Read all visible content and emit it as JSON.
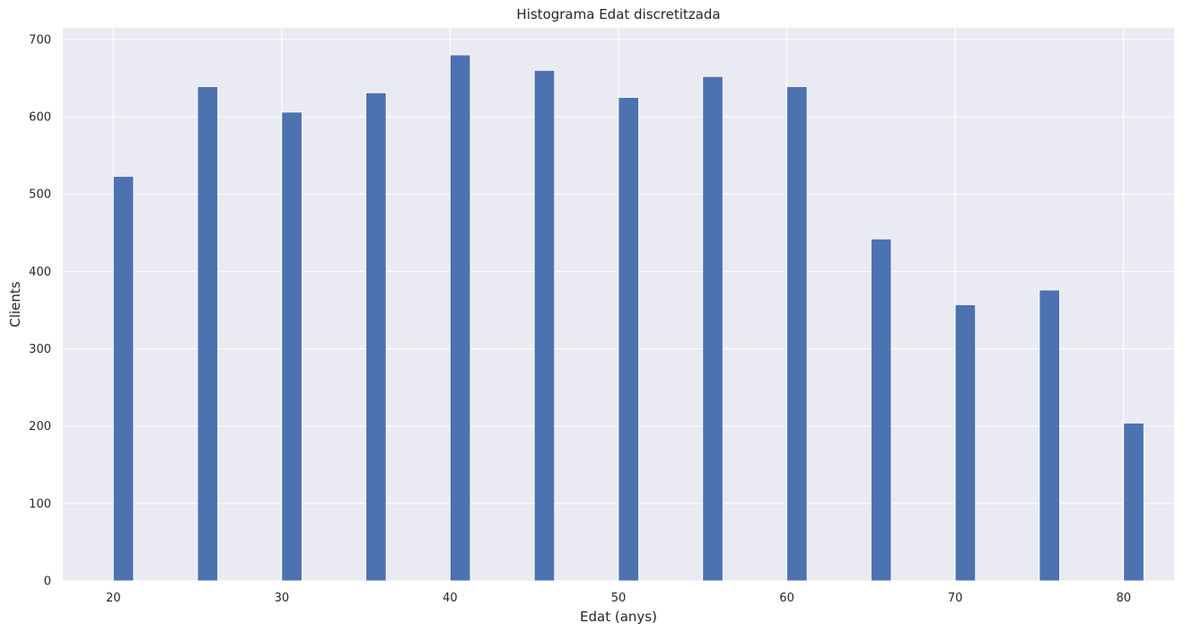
{
  "chart_data": {
    "type": "bar",
    "title": "Histograma Edat discretitzada",
    "xlabel": "Edat (anys)",
    "ylabel": "Clients",
    "x": [
      20,
      25,
      30,
      35,
      40,
      45,
      50,
      55,
      60,
      65,
      70,
      75,
      80
    ],
    "values": [
      523,
      639,
      606,
      631,
      680,
      660,
      625,
      652,
      639,
      442,
      357,
      376,
      204
    ],
    "xlim": [
      17,
      83
    ],
    "ylim": [
      0,
      715
    ],
    "xticks": [
      "20",
      "30",
      "40",
      "50",
      "60",
      "70",
      "80"
    ],
    "yticks": [
      "0",
      "100",
      "200",
      "300",
      "400",
      "500",
      "600",
      "700"
    ],
    "grid": true,
    "colors": {
      "bar": "#4c72b0",
      "background": "#eaeaf2",
      "grid": "#ffffff"
    }
  }
}
